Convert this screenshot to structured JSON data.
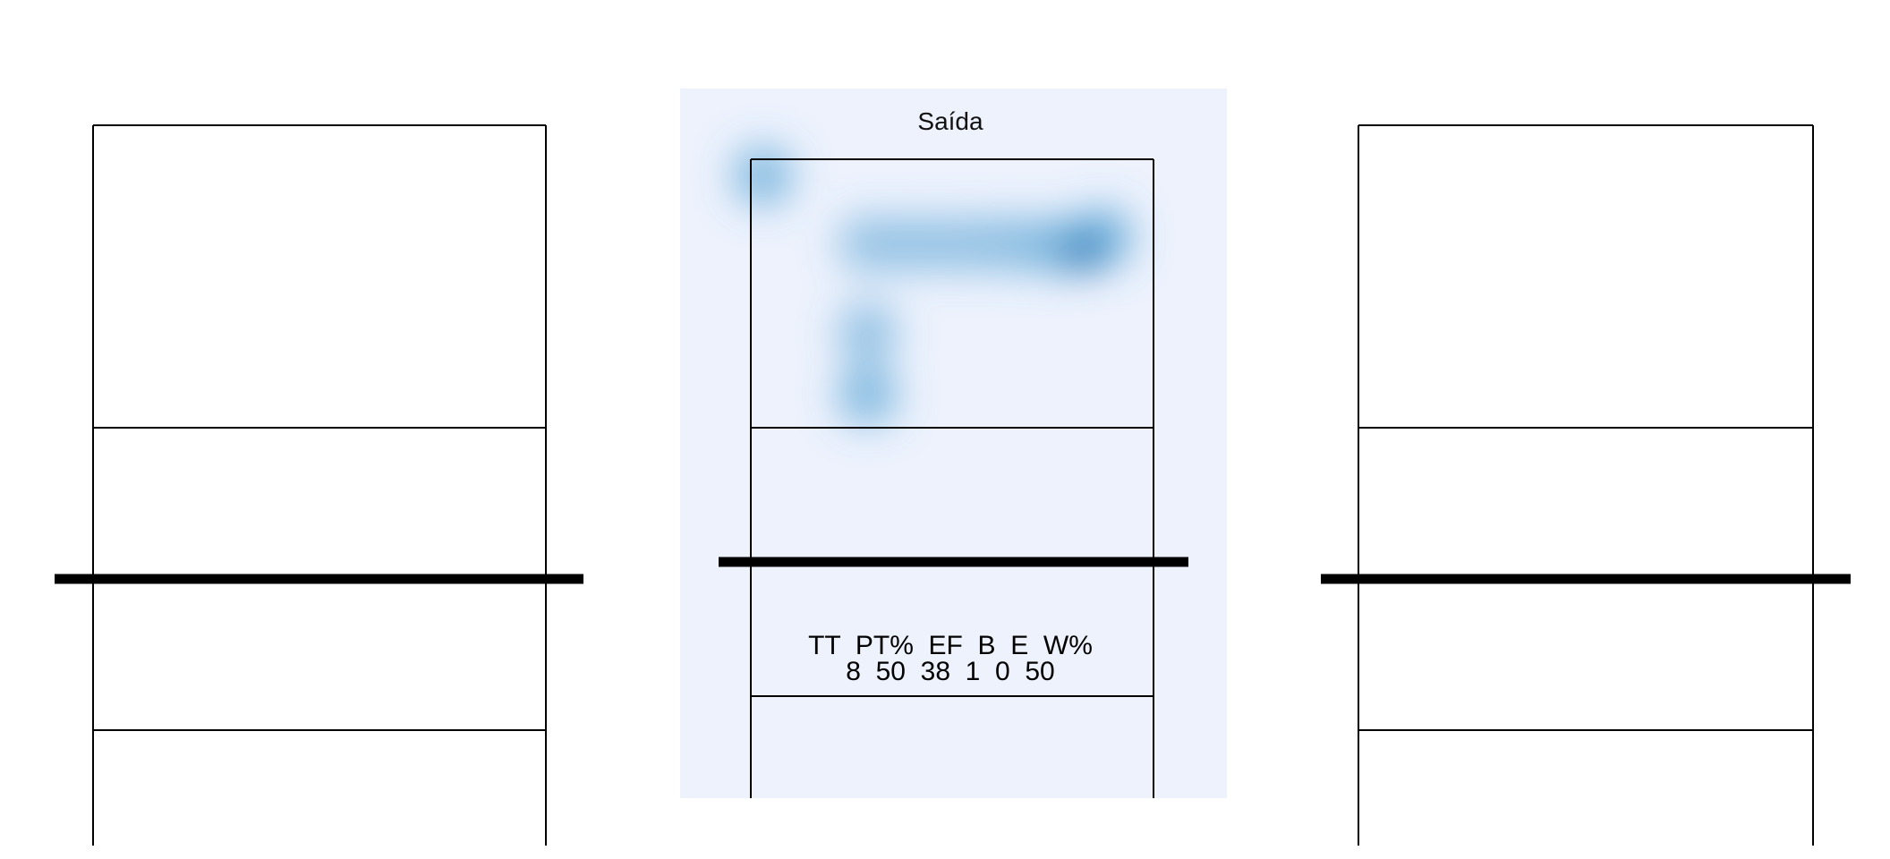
{
  "chart_data": {
    "type": "heatmap",
    "panels": [
      {
        "id": "left",
        "title": "",
        "has_heatmap": false
      },
      {
        "id": "center",
        "title": "Saída",
        "has_heatmap": true,
        "colors": {
          "panel_bg": "#edf2fd",
          "low": "#9ecae1",
          "high": "#08519c"
        },
        "points": [
          {
            "x": 0.09,
            "y": 8.72,
            "w": 0.55
          },
          {
            "x": 0.87,
            "y": 7.58,
            "w": 0.4
          },
          {
            "x": 1.22,
            "y": 7.58,
            "w": 0.4
          },
          {
            "x": 1.57,
            "y": 7.58,
            "w": 0.4
          },
          {
            "x": 1.92,
            "y": 7.58,
            "w": 0.45
          },
          {
            "x": 2.27,
            "y": 7.55,
            "w": 0.55
          },
          {
            "x": 2.5,
            "y": 7.45,
            "w": 1.0
          },
          {
            "x": 2.62,
            "y": 7.7,
            "w": 0.6
          },
          {
            "x": 0.87,
            "y": 6.1,
            "w": 0.45
          },
          {
            "x": 0.87,
            "y": 5.05,
            "w": 0.55
          }
        ],
        "stats": {
          "header": "TT  PT%  EF  B  E  W%",
          "values": "8  50  38  1  0  50"
        }
      },
      {
        "id": "right",
        "title": "",
        "has_heatmap": false
      }
    ]
  }
}
